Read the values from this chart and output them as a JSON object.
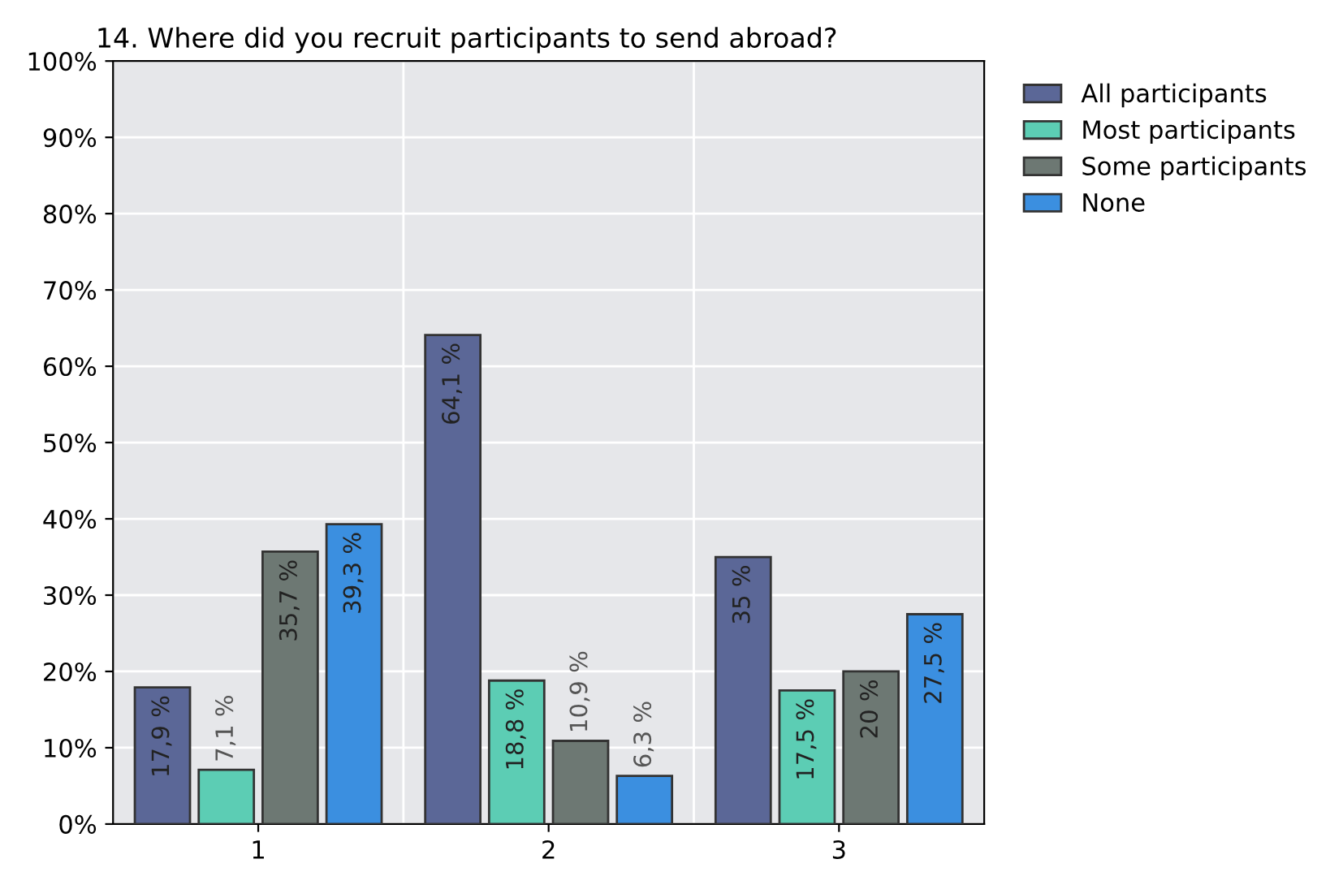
{
  "chart_data": {
    "type": "bar",
    "title": "14. Where did you recruit participants to send abroad?",
    "categories": [
      "1",
      "2",
      "3"
    ],
    "series": [
      {
        "name": "All participants",
        "color": "#5b6797",
        "values": [
          17.9,
          64.1,
          35
        ],
        "value_labels": [
          "17,9 %",
          "64,1 %",
          "35 %"
        ]
      },
      {
        "name": "Most participants",
        "color": "#5ccdb4",
        "values": [
          7.1,
          18.8,
          17.5
        ],
        "value_labels": [
          "7,1 %",
          "18,8 %",
          "17,5 %"
        ]
      },
      {
        "name": "Some participants",
        "color": "#6d7873",
        "values": [
          35.7,
          10.9,
          20
        ],
        "value_labels": [
          "35,7 %",
          "10,9 %",
          "20 %"
        ]
      },
      {
        "name": "None",
        "color": "#3b8fe0",
        "values": [
          39.3,
          6.3,
          27.5
        ],
        "value_labels": [
          "39,3 %",
          "6,3 %",
          "27,5 %"
        ]
      }
    ],
    "ylim": [
      0,
      100
    ],
    "yticks": [
      {
        "value": 0,
        "label": "0%"
      },
      {
        "value": 10,
        "label": "10%"
      },
      {
        "value": 20,
        "label": "20%"
      },
      {
        "value": 30,
        "label": "30%"
      },
      {
        "value": 40,
        "label": "40%"
      },
      {
        "value": 50,
        "label": "50%"
      },
      {
        "value": 60,
        "label": "60%"
      },
      {
        "value": 70,
        "label": "70%"
      },
      {
        "value": 80,
        "label": "80%"
      },
      {
        "value": 90,
        "label": "90%"
      },
      {
        "value": 100,
        "label": "100%"
      }
    ],
    "grid": true,
    "legend": "top right"
  }
}
